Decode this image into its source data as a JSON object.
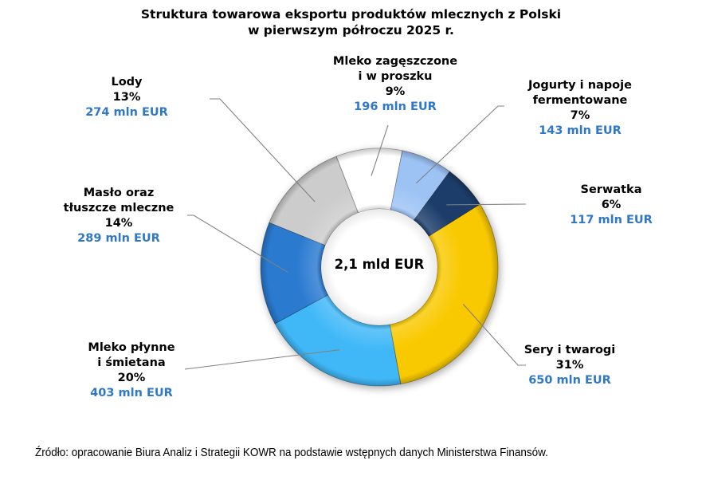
{
  "chart_data": {
    "type": "pie",
    "subtype": "donut",
    "title": [
      "Struktura towarowa eksportu produktów mlecznych z Polski",
      "w pierwszym półroczu 2025 r."
    ],
    "center_label": "2,1 mld EUR",
    "start_angle_deg": 58,
    "direction": "clockwise",
    "slices": [
      {
        "name": [
          "Sery i twarogi"
        ],
        "percent_label": "31%",
        "percent": 31,
        "value": 650,
        "value_label": "650 mln EUR",
        "color": "#f9c900"
      },
      {
        "name": [
          "Mleko płynne",
          "i śmietana"
        ],
        "percent_label": "20%",
        "percent": 20,
        "value": 403,
        "value_label": "403 mln EUR",
        "color": "#3fb8f8"
      },
      {
        "name": [
          "Masło oraz",
          "tłuszcze mleczne"
        ],
        "percent_label": "14%",
        "percent": 14,
        "value": 289,
        "value_label": "289 mln EUR",
        "color": "#2b7ad0"
      },
      {
        "name": [
          "Lody"
        ],
        "percent_label": "13%",
        "percent": 13,
        "value": 274,
        "value_label": "274 mln EUR",
        "color": "#cccccc"
      },
      {
        "name": [
          "Mleko zagęszczone",
          "i w proszku"
        ],
        "percent_label": "9%",
        "percent": 9,
        "value": 196,
        "value_label": "196 mln EUR",
        "color": "#ffffff"
      },
      {
        "name": [
          "Jogurty i napoje",
          "fermentowane"
        ],
        "percent_label": "7%",
        "percent": 7,
        "value": 143,
        "value_label": "143 mln EUR",
        "color": "#9dc3f5"
      },
      {
        "name": [
          "Serwatka"
        ],
        "percent_label": "6%",
        "percent": 6,
        "value": 117,
        "value_label": "117 mln EUR",
        "color": "#1f3d6b"
      }
    ]
  },
  "source": "Źródło: opracowanie Biura Analiz i Strategii KOWR na podstawie wstępnych danych Ministerstwa Finansów.",
  "colors": {
    "value_text": "#2e78c7",
    "leader_line": "#808080"
  }
}
